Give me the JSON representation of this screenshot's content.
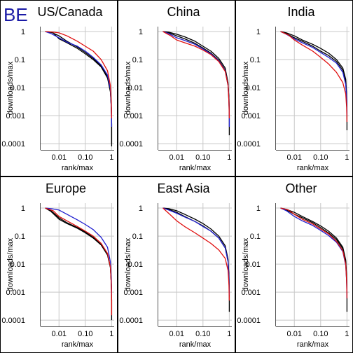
{
  "figure": {
    "label": "BE",
    "label_color": "#1a1aa6"
  },
  "colors": {
    "black": "#000000",
    "blue": "#1f1fd0",
    "red": "#e01010",
    "grid": "#c8c8c8",
    "frame": "#000000"
  },
  "axes": {
    "xlabel": "rank/max",
    "ylabel": "downloads/max",
    "xscale": "log",
    "yscale": "log",
    "xlim": [
      0.002,
      1.25
    ],
    "ylim": [
      6e-05,
      1.5
    ],
    "xticks": [
      {
        "value": 0.01,
        "label": "0.01"
      },
      {
        "value": 0.1,
        "label": "0.10"
      },
      {
        "value": 1,
        "label": "1"
      }
    ],
    "yticks": [
      {
        "value": 1,
        "label": "1"
      },
      {
        "value": 0.1,
        "label": "0.1"
      },
      {
        "value": 0.01,
        "label": "0.01"
      },
      {
        "value": 0.001,
        "label": "0.001"
      },
      {
        "value": 0.0001,
        "label": "0.0001"
      }
    ],
    "grid": true
  },
  "chart_data": [
    {
      "type": "line",
      "title": "US/Canada",
      "series": [
        {
          "color": "black",
          "x": [
            0.003,
            0.005,
            0.01,
            0.02,
            0.05,
            0.1,
            0.2,
            0.4,
            0.7,
            0.9,
            0.97,
            1.0,
            1.0
          ],
          "y": [
            1,
            0.95,
            0.7,
            0.45,
            0.28,
            0.18,
            0.11,
            0.06,
            0.025,
            0.008,
            0.002,
            0.0005,
            8e-05
          ]
        },
        {
          "color": "black",
          "x": [
            0.003,
            0.006,
            0.01,
            0.02,
            0.05,
            0.1,
            0.2,
            0.4,
            0.7,
            0.9,
            0.97,
            1.0,
            1.0
          ],
          "y": [
            1,
            0.9,
            0.55,
            0.4,
            0.25,
            0.16,
            0.1,
            0.055,
            0.022,
            0.007,
            0.002,
            0.0005,
            0.0001
          ]
        },
        {
          "color": "blue",
          "x": [
            0.003,
            0.005,
            0.01,
            0.02,
            0.05,
            0.1,
            0.2,
            0.4,
            0.7,
            0.9,
            0.97,
            1.0
          ],
          "y": [
            1,
            0.85,
            0.6,
            0.42,
            0.3,
            0.2,
            0.12,
            0.065,
            0.028,
            0.009,
            0.002,
            0.0004
          ]
        },
        {
          "color": "red",
          "x": [
            0.003,
            0.006,
            0.01,
            0.02,
            0.05,
            0.1,
            0.2,
            0.4,
            0.7,
            0.9,
            0.97,
            1.0
          ],
          "y": [
            1,
            0.95,
            0.9,
            0.7,
            0.45,
            0.3,
            0.2,
            0.1,
            0.04,
            0.012,
            0.003,
            0.0008
          ]
        }
      ]
    },
    {
      "type": "line",
      "title": "China",
      "series": [
        {
          "color": "black",
          "x": [
            0.003,
            0.005,
            0.01,
            0.02,
            0.05,
            0.1,
            0.2,
            0.4,
            0.7,
            0.9,
            0.97,
            1.0,
            1.0
          ],
          "y": [
            1,
            0.95,
            0.8,
            0.65,
            0.45,
            0.3,
            0.2,
            0.11,
            0.05,
            0.015,
            0.004,
            0.001,
            0.0002
          ]
        },
        {
          "color": "black",
          "x": [
            0.003,
            0.005,
            0.01,
            0.02,
            0.05,
            0.1,
            0.2,
            0.4,
            0.7,
            0.9,
            0.97,
            1.0
          ],
          "y": [
            1,
            0.9,
            0.7,
            0.55,
            0.38,
            0.26,
            0.17,
            0.095,
            0.042,
            0.013,
            0.004,
            0.001
          ]
        },
        {
          "color": "blue",
          "x": [
            0.003,
            0.005,
            0.01,
            0.02,
            0.05,
            0.1,
            0.2,
            0.4,
            0.7,
            0.9,
            0.97,
            1.0,
            1.0
          ],
          "y": [
            1,
            0.85,
            0.6,
            0.48,
            0.35,
            0.24,
            0.16,
            0.09,
            0.04,
            0.012,
            0.003,
            0.0008,
            0.0004
          ]
        },
        {
          "color": "red",
          "x": [
            0.003,
            0.006,
            0.01,
            0.02,
            0.05,
            0.1,
            0.2,
            0.4,
            0.7,
            0.9,
            0.97,
            1.0
          ],
          "y": [
            1,
            0.7,
            0.5,
            0.4,
            0.3,
            0.22,
            0.15,
            0.085,
            0.038,
            0.012,
            0.003,
            0.0008
          ]
        }
      ]
    },
    {
      "type": "line",
      "title": "India",
      "series": [
        {
          "color": "black",
          "x": [
            0.003,
            0.005,
            0.01,
            0.02,
            0.05,
            0.1,
            0.2,
            0.4,
            0.7,
            0.9,
            0.97,
            1.0,
            1.0
          ],
          "y": [
            1,
            0.9,
            0.7,
            0.5,
            0.35,
            0.25,
            0.17,
            0.1,
            0.05,
            0.02,
            0.006,
            0.0015,
            0.0003
          ]
        },
        {
          "color": "black",
          "x": [
            0.003,
            0.005,
            0.01,
            0.02,
            0.05,
            0.1,
            0.2,
            0.4,
            0.7,
            0.9,
            0.97,
            1.0
          ],
          "y": [
            1,
            0.85,
            0.6,
            0.45,
            0.3,
            0.2,
            0.14,
            0.085,
            0.042,
            0.016,
            0.005,
            0.0012
          ]
        },
        {
          "color": "blue",
          "x": [
            0.003,
            0.005,
            0.01,
            0.02,
            0.05,
            0.1,
            0.2,
            0.4,
            0.7,
            0.9,
            0.97,
            1.0
          ],
          "y": [
            1,
            0.8,
            0.55,
            0.4,
            0.27,
            0.18,
            0.12,
            0.075,
            0.035,
            0.013,
            0.004,
            0.001
          ]
        },
        {
          "color": "red",
          "x": [
            0.003,
            0.006,
            0.01,
            0.02,
            0.05,
            0.1,
            0.2,
            0.4,
            0.7,
            0.9,
            0.97,
            1.0
          ],
          "y": [
            1,
            0.75,
            0.5,
            0.33,
            0.2,
            0.12,
            0.07,
            0.035,
            0.015,
            0.006,
            0.002,
            0.0006
          ]
        }
      ]
    },
    {
      "type": "line",
      "title": "Europe",
      "series": [
        {
          "color": "black",
          "x": [
            0.003,
            0.005,
            0.01,
            0.02,
            0.05,
            0.1,
            0.2,
            0.4,
            0.7,
            0.9,
            0.97,
            1.0,
            1.0
          ],
          "y": [
            1,
            0.8,
            0.45,
            0.3,
            0.2,
            0.14,
            0.09,
            0.05,
            0.022,
            0.008,
            0.002,
            0.0005,
            0.0001
          ]
        },
        {
          "color": "black",
          "x": [
            0.003,
            0.005,
            0.01,
            0.02,
            0.05,
            0.1,
            0.2,
            0.4,
            0.7,
            0.9,
            0.97,
            1.0
          ],
          "y": [
            1,
            0.75,
            0.4,
            0.28,
            0.19,
            0.13,
            0.085,
            0.048,
            0.021,
            0.0075,
            0.002,
            0.0005
          ]
        },
        {
          "color": "blue",
          "x": [
            0.003,
            0.005,
            0.01,
            0.02,
            0.05,
            0.1,
            0.2,
            0.4,
            0.7,
            0.9,
            0.97,
            1.0
          ],
          "y": [
            1,
            0.95,
            0.85,
            0.6,
            0.38,
            0.26,
            0.17,
            0.09,
            0.04,
            0.012,
            0.003,
            0.0008
          ]
        },
        {
          "color": "red",
          "x": [
            0.003,
            0.006,
            0.01,
            0.02,
            0.05,
            0.1,
            0.2,
            0.4,
            0.7,
            0.9,
            0.97,
            1.0,
            1.0
          ],
          "y": [
            1,
            0.8,
            0.5,
            0.35,
            0.22,
            0.15,
            0.1,
            0.055,
            0.024,
            0.008,
            0.002,
            0.0005,
            0.00015
          ]
        }
      ]
    },
    {
      "type": "line",
      "title": "East Asia",
      "series": [
        {
          "color": "black",
          "x": [
            0.003,
            0.005,
            0.01,
            0.02,
            0.05,
            0.1,
            0.2,
            0.4,
            0.7,
            0.9,
            0.97,
            1.0,
            1.0
          ],
          "y": [
            1,
            0.95,
            0.8,
            0.6,
            0.4,
            0.28,
            0.18,
            0.1,
            0.045,
            0.015,
            0.004,
            0.001,
            0.0002
          ]
        },
        {
          "color": "black",
          "x": [
            0.003,
            0.005,
            0.01,
            0.02,
            0.05,
            0.1,
            0.2,
            0.4,
            0.7,
            0.9,
            0.97,
            1.0
          ],
          "y": [
            1,
            0.9,
            0.7,
            0.5,
            0.33,
            0.23,
            0.15,
            0.085,
            0.038,
            0.013,
            0.0035,
            0.0009
          ]
        },
        {
          "color": "blue",
          "x": [
            0.003,
            0.005,
            0.01,
            0.02,
            0.05,
            0.1,
            0.2,
            0.4,
            0.7,
            0.9,
            0.97,
            1.0
          ],
          "y": [
            1,
            0.85,
            0.65,
            0.48,
            0.33,
            0.22,
            0.15,
            0.085,
            0.038,
            0.012,
            0.003,
            0.0008
          ]
        },
        {
          "color": "red",
          "x": [
            0.003,
            0.006,
            0.01,
            0.02,
            0.05,
            0.1,
            0.2,
            0.4,
            0.7,
            0.9,
            0.97,
            1.0
          ],
          "y": [
            1,
            0.55,
            0.35,
            0.22,
            0.13,
            0.085,
            0.055,
            0.032,
            0.016,
            0.006,
            0.0018,
            0.0005
          ]
        }
      ]
    },
    {
      "type": "line",
      "title": "Other",
      "series": [
        {
          "color": "black",
          "x": [
            0.003,
            0.005,
            0.01,
            0.02,
            0.05,
            0.1,
            0.2,
            0.4,
            0.7,
            0.9,
            0.97,
            1.0,
            1.0
          ],
          "y": [
            1,
            0.9,
            0.7,
            0.5,
            0.33,
            0.23,
            0.15,
            0.085,
            0.04,
            0.014,
            0.004,
            0.001,
            0.0002
          ]
        },
        {
          "color": "black",
          "x": [
            0.003,
            0.005,
            0.01,
            0.02,
            0.05,
            0.1,
            0.2,
            0.4,
            0.7,
            0.9,
            0.97,
            1.0
          ],
          "y": [
            1,
            0.85,
            0.6,
            0.45,
            0.3,
            0.2,
            0.13,
            0.075,
            0.035,
            0.012,
            0.0035,
            0.0009
          ]
        },
        {
          "color": "blue",
          "x": [
            0.003,
            0.005,
            0.01,
            0.02,
            0.05,
            0.1,
            0.2,
            0.4,
            0.7,
            0.9,
            0.97,
            1.0
          ],
          "y": [
            1,
            0.8,
            0.5,
            0.35,
            0.24,
            0.16,
            0.105,
            0.06,
            0.028,
            0.009,
            0.0025,
            0.0006
          ]
        },
        {
          "color": "red",
          "x": [
            0.003,
            0.006,
            0.01,
            0.02,
            0.05,
            0.1,
            0.2,
            0.4,
            0.7,
            0.9,
            0.97,
            1.0
          ],
          "y": [
            1,
            0.85,
            0.6,
            0.4,
            0.27,
            0.18,
            0.12,
            0.065,
            0.03,
            0.01,
            0.0025,
            0.0006
          ]
        }
      ]
    }
  ]
}
